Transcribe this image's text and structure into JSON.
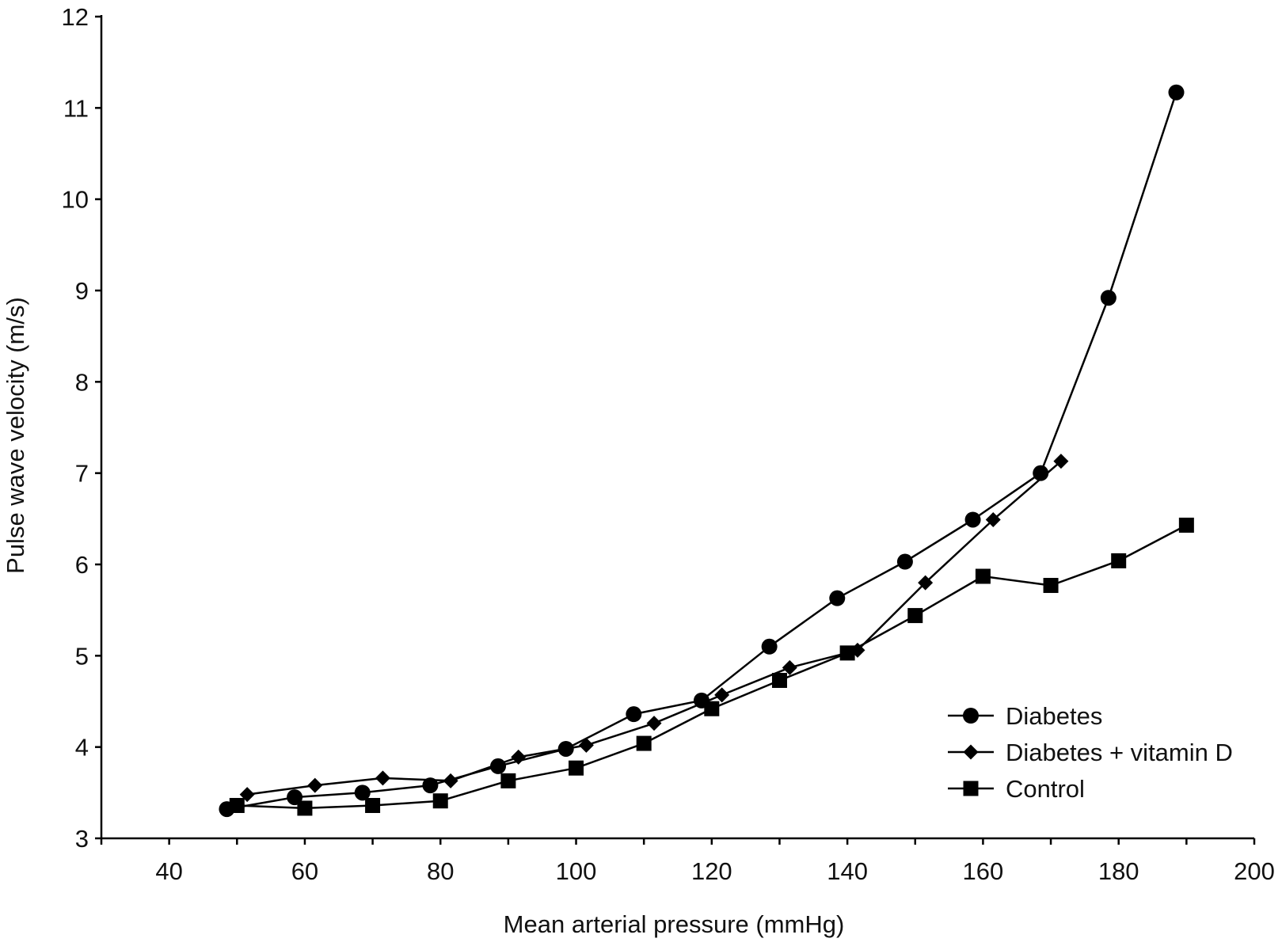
{
  "chart_data": {
    "type": "line",
    "xlabel": "Mean arterial pressure (mmHg)",
    "ylabel": "Pulse wave velocity (m/s)",
    "xlim": [
      30,
      200
    ],
    "ylim": [
      3,
      12
    ],
    "x_ticks": [
      40,
      60,
      80,
      100,
      120,
      140,
      160,
      180,
      200
    ],
    "y_ticks": [
      3,
      4,
      5,
      6,
      7,
      8,
      9,
      10,
      11,
      12
    ],
    "grid": false,
    "legend_position": "bottom-right",
    "series": [
      {
        "name": "Diabetes",
        "marker": "circle",
        "color": "#000000",
        "points": [
          {
            "x": 48.5,
            "y": 3.32
          },
          {
            "x": 58.5,
            "y": 3.45
          },
          {
            "x": 68.5,
            "y": 3.5
          },
          {
            "x": 78.5,
            "y": 3.58
          },
          {
            "x": 88.5,
            "y": 3.79
          },
          {
            "x": 98.5,
            "y": 3.98
          },
          {
            "x": 108.5,
            "y": 4.36
          },
          {
            "x": 118.5,
            "y": 4.51
          },
          {
            "x": 128.5,
            "y": 5.1
          },
          {
            "x": 138.5,
            "y": 5.63
          },
          {
            "x": 148.5,
            "y": 6.03
          },
          {
            "x": 158.5,
            "y": 6.49
          },
          {
            "x": 168.5,
            "y": 7.0
          },
          {
            "x": 178.5,
            "y": 8.92
          },
          {
            "x": 188.5,
            "y": 11.17
          }
        ]
      },
      {
        "name": "Diabetes + vitamin D",
        "marker": "diamond",
        "color": "#000000",
        "points": [
          {
            "x": 51.5,
            "y": 3.48
          },
          {
            "x": 61.5,
            "y": 3.58
          },
          {
            "x": 71.5,
            "y": 3.66
          },
          {
            "x": 81.5,
            "y": 3.63
          },
          {
            "x": 91.5,
            "y": 3.89
          },
          {
            "x": 101.5,
            "y": 4.02
          },
          {
            "x": 111.5,
            "y": 4.26
          },
          {
            "x": 121.5,
            "y": 4.57
          },
          {
            "x": 131.5,
            "y": 4.87
          },
          {
            "x": 141.5,
            "y": 5.06
          },
          {
            "x": 151.5,
            "y": 5.8
          },
          {
            "x": 161.5,
            "y": 6.49
          },
          {
            "x": 171.5,
            "y": 7.13
          }
        ]
      },
      {
        "name": "Control",
        "marker": "square",
        "color": "#000000",
        "points": [
          {
            "x": 50,
            "y": 3.36
          },
          {
            "x": 60,
            "y": 3.33
          },
          {
            "x": 70,
            "y": 3.36
          },
          {
            "x": 80,
            "y": 3.41
          },
          {
            "x": 90,
            "y": 3.63
          },
          {
            "x": 100,
            "y": 3.77
          },
          {
            "x": 110,
            "y": 4.04
          },
          {
            "x": 120,
            "y": 4.42
          },
          {
            "x": 130,
            "y": 4.73
          },
          {
            "x": 140,
            "y": 5.03
          },
          {
            "x": 150,
            "y": 5.44
          },
          {
            "x": 160,
            "y": 5.87
          },
          {
            "x": 170,
            "y": 5.77
          },
          {
            "x": 180,
            "y": 6.04
          },
          {
            "x": 190,
            "y": 6.43
          }
        ]
      }
    ]
  }
}
